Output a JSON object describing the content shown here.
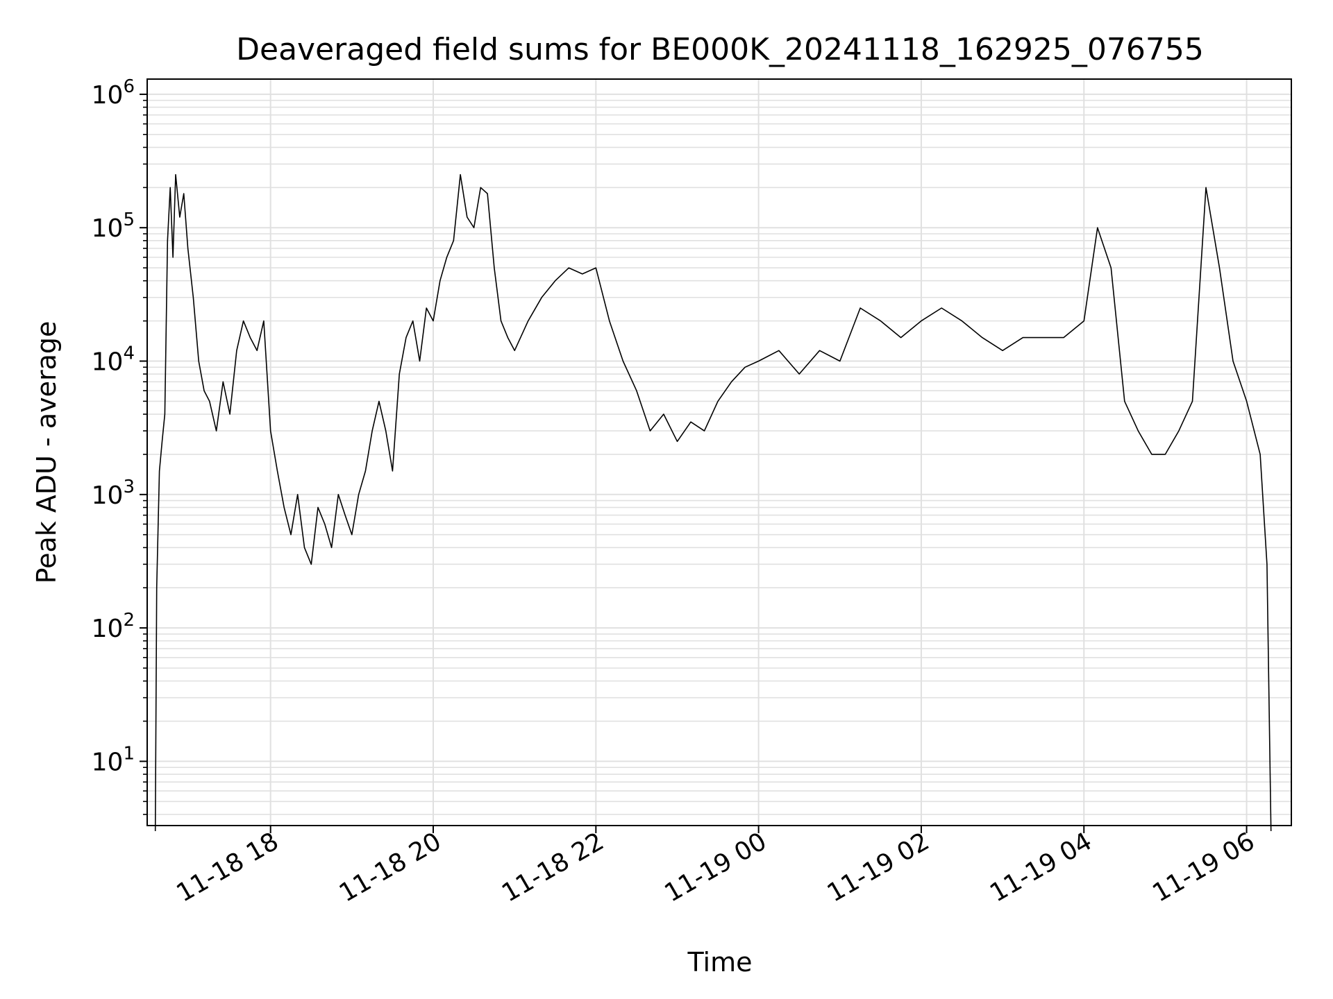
{
  "chart_data": {
    "type": "line",
    "title": "Deaveraged field sums for BE000K_20241118_162925_076755",
    "xlabel": "Time",
    "ylabel": "Peak ADU - average",
    "yscale": "log",
    "ylim": [
      3.3,
      1300000
    ],
    "xlim": [
      "2024-11-18 16:29",
      "2024-11-19 06:33"
    ],
    "grid": true,
    "line_color": "#000000",
    "grid_color": "#e0e0e0",
    "x_ticks": [
      {
        "t": "2024-11-18 18:00",
        "label": "11-18 18"
      },
      {
        "t": "2024-11-18 20:00",
        "label": "11-18 20"
      },
      {
        "t": "2024-11-18 22:00",
        "label": "11-18 22"
      },
      {
        "t": "2024-11-19 00:00",
        "label": "11-19 00"
      },
      {
        "t": "2024-11-19 02:00",
        "label": "11-19 02"
      },
      {
        "t": "2024-11-19 04:00",
        "label": "11-19 04"
      },
      {
        "t": "2024-11-19 06:00",
        "label": "11-19 06"
      }
    ],
    "y_ticks": [
      {
        "v": 10,
        "base": "10",
        "exp": "1"
      },
      {
        "v": 100,
        "base": "10",
        "exp": "2"
      },
      {
        "v": 1000,
        "base": "10",
        "exp": "3"
      },
      {
        "v": 10000,
        "base": "10",
        "exp": "4"
      },
      {
        "v": 100000,
        "base": "10",
        "exp": "5"
      },
      {
        "v": 1000000,
        "base": "10",
        "exp": "6"
      }
    ],
    "series": [
      {
        "points": [
          [
            "2024-11-18 16:35",
            3
          ],
          [
            "2024-11-18 16:36",
            200
          ],
          [
            "2024-11-18 16:38",
            1500
          ],
          [
            "2024-11-18 16:40",
            2500
          ],
          [
            "2024-11-18 16:42",
            4000
          ],
          [
            "2024-11-18 16:44",
            80000
          ],
          [
            "2024-11-18 16:46",
            200000
          ],
          [
            "2024-11-18 16:48",
            60000
          ],
          [
            "2024-11-18 16:50",
            250000
          ],
          [
            "2024-11-18 16:53",
            120000
          ],
          [
            "2024-11-18 16:56",
            180000
          ],
          [
            "2024-11-18 16:59",
            70000
          ],
          [
            "2024-11-18 17:03",
            30000
          ],
          [
            "2024-11-18 17:07",
            10000
          ],
          [
            "2024-11-18 17:11",
            6000
          ],
          [
            "2024-11-18 17:15",
            5000
          ],
          [
            "2024-11-18 17:20",
            3000
          ],
          [
            "2024-11-18 17:25",
            7000
          ],
          [
            "2024-11-18 17:30",
            4000
          ],
          [
            "2024-11-18 17:35",
            12000
          ],
          [
            "2024-11-18 17:40",
            20000
          ],
          [
            "2024-11-18 17:45",
            15000
          ],
          [
            "2024-11-18 17:50",
            12000
          ],
          [
            "2024-11-18 17:55",
            20000
          ],
          [
            "2024-11-18 18:00",
            3000
          ],
          [
            "2024-11-18 18:05",
            1500
          ],
          [
            "2024-11-18 18:10",
            800
          ],
          [
            "2024-11-18 18:15",
            500
          ],
          [
            "2024-11-18 18:20",
            1000
          ],
          [
            "2024-11-18 18:25",
            400
          ],
          [
            "2024-11-18 18:30",
            300
          ],
          [
            "2024-11-18 18:35",
            800
          ],
          [
            "2024-11-18 18:40",
            600
          ],
          [
            "2024-11-18 18:45",
            400
          ],
          [
            "2024-11-18 18:50",
            1000
          ],
          [
            "2024-11-18 18:55",
            700
          ],
          [
            "2024-11-18 19:00",
            500
          ],
          [
            "2024-11-18 19:05",
            1000
          ],
          [
            "2024-11-18 19:10",
            1500
          ],
          [
            "2024-11-18 19:15",
            3000
          ],
          [
            "2024-11-18 19:20",
            5000
          ],
          [
            "2024-11-18 19:25",
            3000
          ],
          [
            "2024-11-18 19:30",
            1500
          ],
          [
            "2024-11-18 19:35",
            8000
          ],
          [
            "2024-11-18 19:40",
            15000
          ],
          [
            "2024-11-18 19:45",
            20000
          ],
          [
            "2024-11-18 19:50",
            10000
          ],
          [
            "2024-11-18 19:55",
            25000
          ],
          [
            "2024-11-18 20:00",
            20000
          ],
          [
            "2024-11-18 20:05",
            40000
          ],
          [
            "2024-11-18 20:10",
            60000
          ],
          [
            "2024-11-18 20:15",
            80000
          ],
          [
            "2024-11-18 20:20",
            250000
          ],
          [
            "2024-11-18 20:25",
            120000
          ],
          [
            "2024-11-18 20:30",
            100000
          ],
          [
            "2024-11-18 20:35",
            200000
          ],
          [
            "2024-11-18 20:40",
            180000
          ],
          [
            "2024-11-18 20:45",
            50000
          ],
          [
            "2024-11-18 20:50",
            20000
          ],
          [
            "2024-11-18 20:55",
            15000
          ],
          [
            "2024-11-18 21:00",
            12000
          ],
          [
            "2024-11-18 21:10",
            20000
          ],
          [
            "2024-11-18 21:20",
            30000
          ],
          [
            "2024-11-18 21:30",
            40000
          ],
          [
            "2024-11-18 21:40",
            50000
          ],
          [
            "2024-11-18 21:50",
            45000
          ],
          [
            "2024-11-18 22:00",
            50000
          ],
          [
            "2024-11-18 22:10",
            20000
          ],
          [
            "2024-11-18 22:20",
            10000
          ],
          [
            "2024-11-18 22:30",
            6000
          ],
          [
            "2024-11-18 22:40",
            3000
          ],
          [
            "2024-11-18 22:50",
            4000
          ],
          [
            "2024-11-18 23:00",
            2500
          ],
          [
            "2024-11-18 23:10",
            3500
          ],
          [
            "2024-11-18 23:20",
            3000
          ],
          [
            "2024-11-18 23:30",
            5000
          ],
          [
            "2024-11-18 23:40",
            7000
          ],
          [
            "2024-11-18 23:50",
            9000
          ],
          [
            "2024-11-19 00:00",
            10000
          ],
          [
            "2024-11-19 00:15",
            12000
          ],
          [
            "2024-11-19 00:30",
            8000
          ],
          [
            "2024-11-19 00:45",
            12000
          ],
          [
            "2024-11-19 01:00",
            10000
          ],
          [
            "2024-11-19 01:15",
            25000
          ],
          [
            "2024-11-19 01:30",
            20000
          ],
          [
            "2024-11-19 01:45",
            15000
          ],
          [
            "2024-11-19 02:00",
            20000
          ],
          [
            "2024-11-19 02:15",
            25000
          ],
          [
            "2024-11-19 02:30",
            20000
          ],
          [
            "2024-11-19 02:45",
            15000
          ],
          [
            "2024-11-19 03:00",
            12000
          ],
          [
            "2024-11-19 03:15",
            15000
          ],
          [
            "2024-11-19 03:30",
            15000
          ],
          [
            "2024-11-19 03:45",
            15000
          ],
          [
            "2024-11-19 04:00",
            20000
          ],
          [
            "2024-11-19 04:10",
            100000
          ],
          [
            "2024-11-19 04:20",
            50000
          ],
          [
            "2024-11-19 04:30",
            5000
          ],
          [
            "2024-11-19 04:40",
            3000
          ],
          [
            "2024-11-19 04:50",
            2000
          ],
          [
            "2024-11-19 05:00",
            2000
          ],
          [
            "2024-11-19 05:10",
            3000
          ],
          [
            "2024-11-19 05:20",
            5000
          ],
          [
            "2024-11-19 05:30",
            200000
          ],
          [
            "2024-11-19 05:40",
            50000
          ],
          [
            "2024-11-19 05:50",
            10000
          ],
          [
            "2024-11-19 06:00",
            5000
          ],
          [
            "2024-11-19 06:10",
            2000
          ],
          [
            "2024-11-19 06:15",
            300
          ],
          [
            "2024-11-19 06:18",
            3
          ]
        ]
      }
    ]
  }
}
